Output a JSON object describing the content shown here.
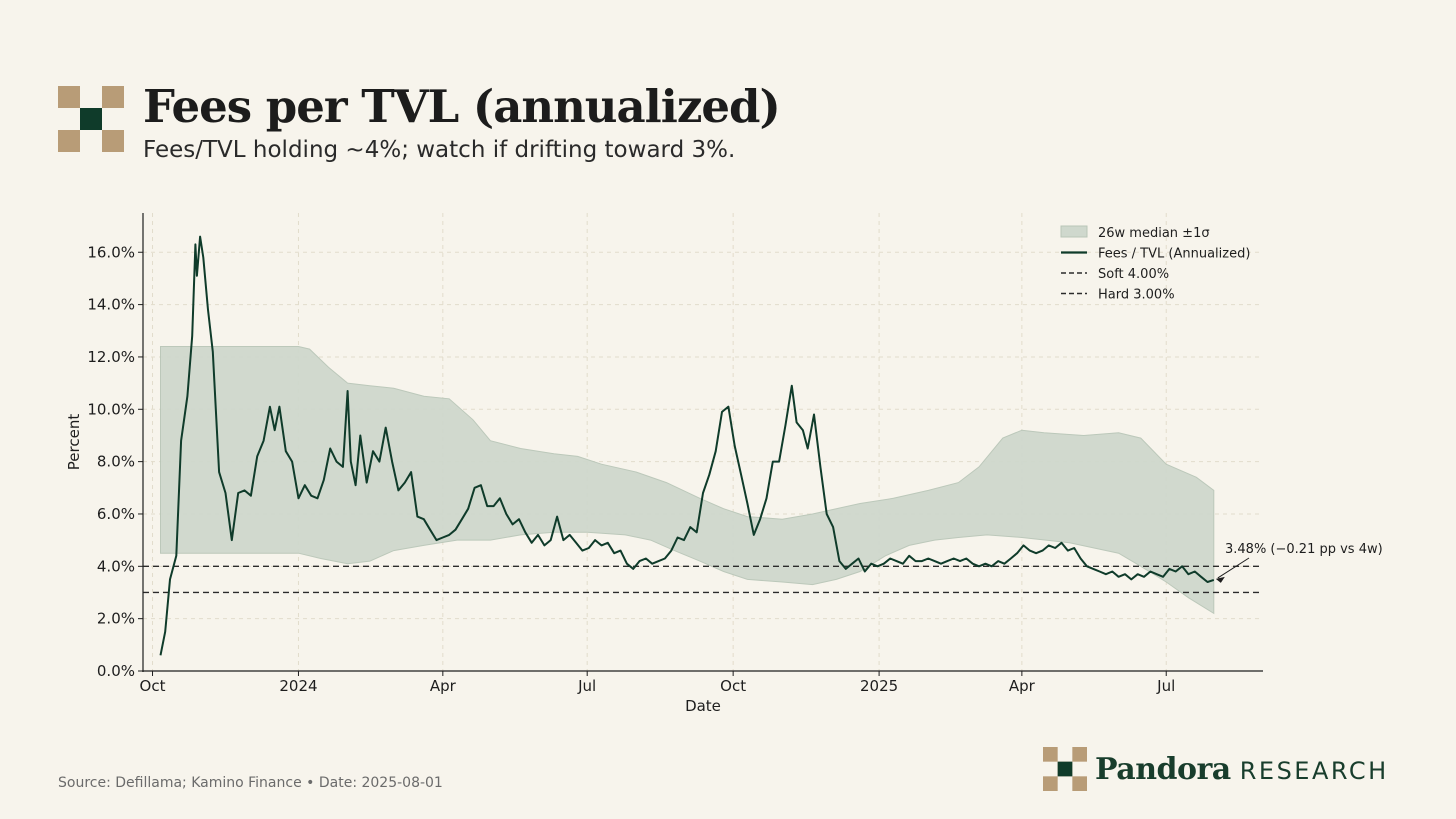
{
  "header": {
    "title": "Fees per TVL (annualized)",
    "subtitle": "Fees/TVL holding ~4%; watch if drifting toward 3%."
  },
  "footer": {
    "source": "Source: Defillama; Kamino Finance • Date: 2025-08-01",
    "brand_name": "Pandora",
    "brand_sub": "RESEARCH"
  },
  "colors": {
    "background": "#f7f4ec",
    "line": "#0f3b2a",
    "band": "#cfd8cd",
    "band_edge": "#b9c6b8",
    "logo_tan": "#b89c77",
    "logo_cream": "#f7f4ec",
    "logo_green": "#0f3b2a"
  },
  "chart_data": {
    "type": "line",
    "xlabel": "Date",
    "ylabel": "Percent",
    "ylim": [
      0,
      17.5
    ],
    "x_range": [
      "2023-09-25",
      "2025-08-31"
    ],
    "y_ticks": [
      0,
      2,
      4,
      6,
      8,
      10,
      12,
      14,
      16
    ],
    "y_tick_labels": [
      "0.0%",
      "2.0%",
      "4.0%",
      "6.0%",
      "8.0%",
      "10.0%",
      "12.0%",
      "14.0%",
      "16.0%"
    ],
    "x_ticks": [
      {
        "date": "2023-10-01",
        "label": "Oct"
      },
      {
        "date": "2024-01-01",
        "label": "2024"
      },
      {
        "date": "2024-04-01",
        "label": "Apr"
      },
      {
        "date": "2024-07-01",
        "label": "Jul"
      },
      {
        "date": "2024-10-01",
        "label": "Oct"
      },
      {
        "date": "2025-01-01",
        "label": "2025"
      },
      {
        "date": "2025-04-01",
        "label": "Apr"
      },
      {
        "date": "2025-07-01",
        "label": "Jul"
      }
    ],
    "grid": true,
    "legend_position": "top-right",
    "legend": [
      {
        "label": "26w median ±1σ",
        "kind": "band"
      },
      {
        "label": "Fees / TVL (Annualized)",
        "kind": "line"
      },
      {
        "label": "Soft 4.00%",
        "kind": "dash"
      },
      {
        "label": "Hard 3.00%",
        "kind": "dash"
      }
    ],
    "reference_lines": [
      {
        "name": "Soft",
        "value": 4.0
      },
      {
        "name": "Hard",
        "value": 3.0
      }
    ],
    "annotation": {
      "date": "2025-07-31",
      "value": 3.48,
      "text": "3.48%  (−0.21 pp vs 4w)"
    },
    "series": [
      {
        "name": "Fees / TVL (Annualized)",
        "points": [
          [
            "2023-10-06",
            0.6
          ],
          [
            "2023-10-09",
            1.5
          ],
          [
            "2023-10-12",
            3.5
          ],
          [
            "2023-10-16",
            4.4
          ],
          [
            "2023-10-19",
            8.8
          ],
          [
            "2023-10-23",
            10.5
          ],
          [
            "2023-10-26",
            12.8
          ],
          [
            "2023-10-28",
            16.3
          ],
          [
            "2023-10-29",
            15.1
          ],
          [
            "2023-10-31",
            16.6
          ],
          [
            "2023-11-02",
            15.8
          ],
          [
            "2023-11-05",
            13.8
          ],
          [
            "2023-11-08",
            12.2
          ],
          [
            "2023-11-12",
            7.6
          ],
          [
            "2023-11-16",
            6.8
          ],
          [
            "2023-11-20",
            5.0
          ],
          [
            "2023-11-24",
            6.8
          ],
          [
            "2023-11-28",
            6.9
          ],
          [
            "2023-12-02",
            6.7
          ],
          [
            "2023-12-06",
            8.2
          ],
          [
            "2023-12-10",
            8.8
          ],
          [
            "2023-12-14",
            10.1
          ],
          [
            "2023-12-17",
            9.2
          ],
          [
            "2023-12-20",
            10.1
          ],
          [
            "2023-12-24",
            8.4
          ],
          [
            "2023-12-28",
            8.0
          ],
          [
            "2024-01-01",
            6.6
          ],
          [
            "2024-01-05",
            7.1
          ],
          [
            "2024-01-09",
            6.7
          ],
          [
            "2024-01-13",
            6.6
          ],
          [
            "2024-01-17",
            7.3
          ],
          [
            "2024-01-21",
            8.5
          ],
          [
            "2024-01-25",
            8.0
          ],
          [
            "2024-01-29",
            7.8
          ],
          [
            "2024-02-01",
            10.7
          ],
          [
            "2024-02-03",
            8.0
          ],
          [
            "2024-02-06",
            7.1
          ],
          [
            "2024-02-09",
            9.0
          ],
          [
            "2024-02-13",
            7.2
          ],
          [
            "2024-02-17",
            8.4
          ],
          [
            "2024-02-21",
            8.0
          ],
          [
            "2024-02-25",
            9.3
          ],
          [
            "2024-02-29",
            8.0
          ],
          [
            "2024-03-04",
            6.9
          ],
          [
            "2024-03-08",
            7.2
          ],
          [
            "2024-03-12",
            7.6
          ],
          [
            "2024-03-16",
            5.9
          ],
          [
            "2024-03-20",
            5.8
          ],
          [
            "2024-03-24",
            5.4
          ],
          [
            "2024-03-28",
            5.0
          ],
          [
            "2024-04-01",
            5.1
          ],
          [
            "2024-04-05",
            5.2
          ],
          [
            "2024-04-09",
            5.4
          ],
          [
            "2024-04-13",
            5.8
          ],
          [
            "2024-04-17",
            6.2
          ],
          [
            "2024-04-21",
            7.0
          ],
          [
            "2024-04-25",
            7.1
          ],
          [
            "2024-04-29",
            6.3
          ],
          [
            "2024-05-03",
            6.3
          ],
          [
            "2024-05-07",
            6.6
          ],
          [
            "2024-05-11",
            6.0
          ],
          [
            "2024-05-15",
            5.6
          ],
          [
            "2024-05-19",
            5.8
          ],
          [
            "2024-05-23",
            5.3
          ],
          [
            "2024-05-27",
            4.9
          ],
          [
            "2024-05-31",
            5.2
          ],
          [
            "2024-06-04",
            4.8
          ],
          [
            "2024-06-08",
            5.0
          ],
          [
            "2024-06-12",
            5.9
          ],
          [
            "2024-06-16",
            5.0
          ],
          [
            "2024-06-20",
            5.2
          ],
          [
            "2024-06-24",
            4.9
          ],
          [
            "2024-06-28",
            4.6
          ],
          [
            "2024-07-02",
            4.7
          ],
          [
            "2024-07-06",
            5.0
          ],
          [
            "2024-07-10",
            4.8
          ],
          [
            "2024-07-14",
            4.9
          ],
          [
            "2024-07-18",
            4.5
          ],
          [
            "2024-07-22",
            4.6
          ],
          [
            "2024-07-26",
            4.1
          ],
          [
            "2024-07-30",
            3.9
          ],
          [
            "2024-08-03",
            4.2
          ],
          [
            "2024-08-07",
            4.3
          ],
          [
            "2024-08-11",
            4.1
          ],
          [
            "2024-08-15",
            4.2
          ],
          [
            "2024-08-19",
            4.3
          ],
          [
            "2024-08-23",
            4.6
          ],
          [
            "2024-08-27",
            5.1
          ],
          [
            "2024-08-31",
            5.0
          ],
          [
            "2024-09-04",
            5.5
          ],
          [
            "2024-09-08",
            5.3
          ],
          [
            "2024-09-12",
            6.8
          ],
          [
            "2024-09-16",
            7.5
          ],
          [
            "2024-09-20",
            8.4
          ],
          [
            "2024-09-24",
            9.9
          ],
          [
            "2024-09-28",
            10.1
          ],
          [
            "2024-10-02",
            8.6
          ],
          [
            "2024-10-06",
            7.5
          ],
          [
            "2024-10-10",
            6.4
          ],
          [
            "2024-10-14",
            5.2
          ],
          [
            "2024-10-18",
            5.8
          ],
          [
            "2024-10-22",
            6.6
          ],
          [
            "2024-10-26",
            8.0
          ],
          [
            "2024-10-30",
            8.0
          ],
          [
            "2024-11-03",
            9.4
          ],
          [
            "2024-11-07",
            10.9
          ],
          [
            "2024-11-10",
            9.5
          ],
          [
            "2024-11-14",
            9.2
          ],
          [
            "2024-11-17",
            8.5
          ],
          [
            "2024-11-21",
            9.8
          ],
          [
            "2024-11-25",
            7.8
          ],
          [
            "2024-11-29",
            6.0
          ],
          [
            "2024-12-03",
            5.5
          ],
          [
            "2024-12-07",
            4.2
          ],
          [
            "2024-12-11",
            3.9
          ],
          [
            "2024-12-15",
            4.1
          ],
          [
            "2024-12-19",
            4.3
          ],
          [
            "2024-12-23",
            3.8
          ],
          [
            "2024-12-27",
            4.1
          ],
          [
            "2024-12-31",
            4.0
          ],
          [
            "2025-01-04",
            4.1
          ],
          [
            "2025-01-08",
            4.3
          ],
          [
            "2025-01-12",
            4.2
          ],
          [
            "2025-01-16",
            4.1
          ],
          [
            "2025-01-20",
            4.4
          ],
          [
            "2025-01-24",
            4.2
          ],
          [
            "2025-01-28",
            4.2
          ],
          [
            "2025-02-01",
            4.3
          ],
          [
            "2025-02-05",
            4.2
          ],
          [
            "2025-02-09",
            4.1
          ],
          [
            "2025-02-13",
            4.2
          ],
          [
            "2025-02-17",
            4.3
          ],
          [
            "2025-02-21",
            4.2
          ],
          [
            "2025-02-25",
            4.3
          ],
          [
            "2025-03-01",
            4.1
          ],
          [
            "2025-03-05",
            4.0
          ],
          [
            "2025-03-09",
            4.1
          ],
          [
            "2025-03-13",
            4.0
          ],
          [
            "2025-03-17",
            4.2
          ],
          [
            "2025-03-21",
            4.1
          ],
          [
            "2025-03-25",
            4.3
          ],
          [
            "2025-03-29",
            4.5
          ],
          [
            "2025-04-02",
            4.8
          ],
          [
            "2025-04-06",
            4.6
          ],
          [
            "2025-04-10",
            4.5
          ],
          [
            "2025-04-14",
            4.6
          ],
          [
            "2025-04-18",
            4.8
          ],
          [
            "2025-04-22",
            4.7
          ],
          [
            "2025-04-26",
            4.9
          ],
          [
            "2025-04-30",
            4.6
          ],
          [
            "2025-05-04",
            4.7
          ],
          [
            "2025-05-08",
            4.3
          ],
          [
            "2025-05-12",
            4.0
          ],
          [
            "2025-05-16",
            3.9
          ],
          [
            "2025-05-20",
            3.8
          ],
          [
            "2025-05-24",
            3.7
          ],
          [
            "2025-05-28",
            3.8
          ],
          [
            "2025-06-01",
            3.6
          ],
          [
            "2025-06-05",
            3.7
          ],
          [
            "2025-06-09",
            3.5
          ],
          [
            "2025-06-13",
            3.7
          ],
          [
            "2025-06-17",
            3.6
          ],
          [
            "2025-06-21",
            3.8
          ],
          [
            "2025-06-25",
            3.7
          ],
          [
            "2025-06-29",
            3.6
          ],
          [
            "2025-07-03",
            3.9
          ],
          [
            "2025-07-07",
            3.8
          ],
          [
            "2025-07-11",
            4.0
          ],
          [
            "2025-07-15",
            3.7
          ],
          [
            "2025-07-19",
            3.8
          ],
          [
            "2025-07-23",
            3.6
          ],
          [
            "2025-07-27",
            3.4
          ],
          [
            "2025-07-31",
            3.48
          ]
        ]
      },
      {
        "name": "26w median ±1σ",
        "band_upper": [
          [
            "2023-10-06",
            12.4
          ],
          [
            "2024-01-01",
            12.4
          ],
          [
            "2024-01-08",
            12.3
          ],
          [
            "2024-01-20",
            11.6
          ],
          [
            "2024-02-01",
            11.0
          ],
          [
            "2024-02-15",
            10.9
          ],
          [
            "2024-03-01",
            10.8
          ],
          [
            "2024-03-20",
            10.5
          ],
          [
            "2024-04-05",
            10.4
          ],
          [
            "2024-04-20",
            9.6
          ],
          [
            "2024-05-01",
            8.8
          ],
          [
            "2024-05-20",
            8.5
          ],
          [
            "2024-06-10",
            8.3
          ],
          [
            "2024-06-25",
            8.2
          ],
          [
            "2024-07-10",
            7.9
          ],
          [
            "2024-08-01",
            7.6
          ],
          [
            "2024-08-20",
            7.2
          ],
          [
            "2024-09-10",
            6.6
          ],
          [
            "2024-09-25",
            6.2
          ],
          [
            "2024-10-10",
            5.9
          ],
          [
            "2024-11-01",
            5.8
          ],
          [
            "2024-11-20",
            6.0
          ],
          [
            "2024-12-05",
            6.2
          ],
          [
            "2024-12-20",
            6.4
          ],
          [
            "2025-01-10",
            6.6
          ],
          [
            "2025-02-01",
            6.9
          ],
          [
            "2025-02-20",
            7.2
          ],
          [
            "2025-03-05",
            7.8
          ],
          [
            "2025-03-20",
            8.9
          ],
          [
            "2025-04-01",
            9.2
          ],
          [
            "2025-04-15",
            9.1
          ],
          [
            "2025-05-10",
            9.0
          ],
          [
            "2025-06-01",
            9.1
          ],
          [
            "2025-06-15",
            8.9
          ],
          [
            "2025-07-01",
            7.9
          ],
          [
            "2025-07-20",
            7.4
          ],
          [
            "2025-07-31",
            6.9
          ]
        ],
        "band_lower": [
          [
            "2023-10-06",
            4.5
          ],
          [
            "2024-01-01",
            4.5
          ],
          [
            "2024-01-15",
            4.3
          ],
          [
            "2024-02-01",
            4.1
          ],
          [
            "2024-02-15",
            4.2
          ],
          [
            "2024-03-01",
            4.6
          ],
          [
            "2024-03-20",
            4.8
          ],
          [
            "2024-04-10",
            5.0
          ],
          [
            "2024-05-01",
            5.0
          ],
          [
            "2024-05-20",
            5.2
          ],
          [
            "2024-06-10",
            5.3
          ],
          [
            "2024-07-01",
            5.3
          ],
          [
            "2024-07-25",
            5.2
          ],
          [
            "2024-08-10",
            5.0
          ],
          [
            "2024-08-25",
            4.6
          ],
          [
            "2024-09-10",
            4.2
          ],
          [
            "2024-09-25",
            3.8
          ],
          [
            "2024-10-10",
            3.5
          ],
          [
            "2024-11-01",
            3.4
          ],
          [
            "2024-11-20",
            3.3
          ],
          [
            "2024-12-05",
            3.5
          ],
          [
            "2024-12-20",
            3.8
          ],
          [
            "2025-01-05",
            4.4
          ],
          [
            "2025-01-20",
            4.8
          ],
          [
            "2025-02-05",
            5.0
          ],
          [
            "2025-02-20",
            5.1
          ],
          [
            "2025-03-10",
            5.2
          ],
          [
            "2025-04-01",
            5.1
          ],
          [
            "2025-05-01",
            4.9
          ],
          [
            "2025-06-01",
            4.5
          ],
          [
            "2025-06-15",
            4.0
          ],
          [
            "2025-07-01",
            3.4
          ],
          [
            "2025-07-15",
            2.8
          ],
          [
            "2025-07-31",
            2.2
          ]
        ]
      }
    ]
  }
}
